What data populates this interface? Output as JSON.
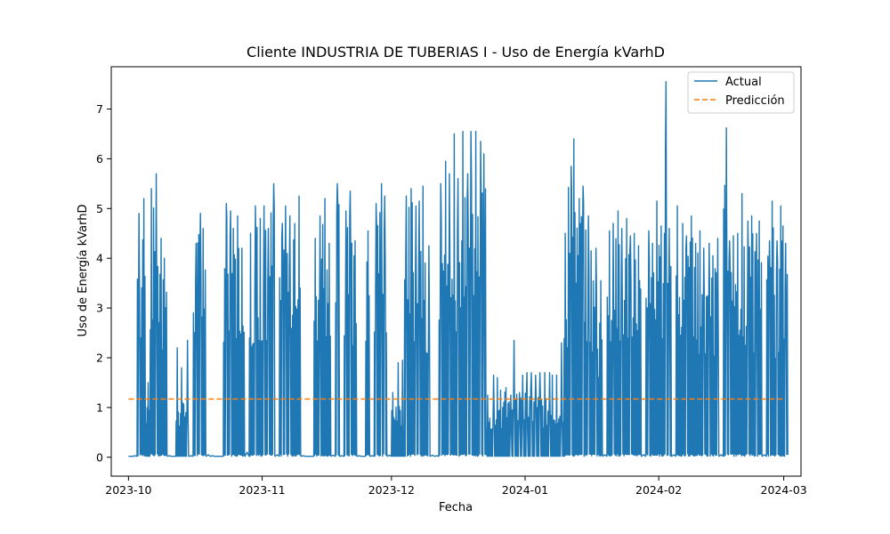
{
  "chart_data": {
    "type": "line",
    "title": "Cliente INDUSTRIA DE TUBERIAS I - Uso de Energía kVarhD",
    "xlabel": "Fecha",
    "ylabel": "Uso de Energía kVarhD",
    "x_range": [
      "2023-09-27",
      "2024-03-05"
    ],
    "ylim": [
      -0.38,
      7.85
    ],
    "x_ticks": [
      {
        "date": "2023-10-01",
        "label": "2023-10"
      },
      {
        "date": "2023-11-01",
        "label": "2023-11"
      },
      {
        "date": "2023-12-01",
        "label": "2023-12"
      },
      {
        "date": "2024-01-01",
        "label": "2024-01"
      },
      {
        "date": "2024-02-01",
        "label": "2024-02"
      },
      {
        "date": "2024-03-01",
        "label": "2024-03"
      }
    ],
    "y_ticks": [
      0,
      1,
      2,
      3,
      4,
      5,
      6,
      7
    ],
    "grid": false,
    "legend_position": "upper right",
    "series": [
      {
        "name": "Actual",
        "style": "solid",
        "color": "#1f77b4",
        "peaks": [
          [
            "2023-10-01",
            0.02
          ],
          [
            "2023-10-02",
            0.03
          ],
          [
            "2023-10-03",
            4.9
          ],
          [
            "2023-10-04",
            5.2
          ],
          [
            "2023-10-05",
            1.5
          ],
          [
            "2023-10-06",
            5.4
          ],
          [
            "2023-10-07",
            5.7
          ],
          [
            "2023-10-08",
            4.4
          ],
          [
            "2023-10-09",
            4.0
          ],
          [
            "2023-10-10",
            0.03
          ],
          [
            "2023-10-11",
            0.02
          ],
          [
            "2023-10-12",
            2.2
          ],
          [
            "2023-10-13",
            1.8
          ],
          [
            "2023-10-14",
            2.35
          ],
          [
            "2023-10-15",
            0.03
          ],
          [
            "2023-10-16",
            4.3
          ],
          [
            "2023-10-17",
            4.9
          ],
          [
            "2023-10-18",
            4.6
          ],
          [
            "2023-10-19",
            0.05
          ],
          [
            "2023-10-20",
            0.03
          ],
          [
            "2023-10-21",
            0.02
          ],
          [
            "2023-10-22",
            0.02
          ],
          [
            "2023-10-23",
            5.1
          ],
          [
            "2023-10-24",
            4.95
          ],
          [
            "2023-10-25",
            4.6
          ],
          [
            "2023-10-26",
            4.85
          ],
          [
            "2023-10-27",
            4.2
          ],
          [
            "2023-10-28",
            0.1
          ],
          [
            "2023-10-29",
            4.5
          ],
          [
            "2023-10-30",
            5.05
          ],
          [
            "2023-10-31",
            4.8
          ],
          [
            "2023-11-01",
            5.05
          ],
          [
            "2023-11-02",
            4.6
          ],
          [
            "2023-11-03",
            5.5
          ],
          [
            "2023-11-04",
            0.05
          ],
          [
            "2023-11-05",
            4.7
          ],
          [
            "2023-11-06",
            5.05
          ],
          [
            "2023-11-07",
            4.85
          ],
          [
            "2023-11-08",
            4.7
          ],
          [
            "2023-11-09",
            5.25
          ],
          [
            "2023-11-10",
            0.03
          ],
          [
            "2023-11-11",
            0.02
          ],
          [
            "2023-11-12",
            0.02
          ],
          [
            "2023-11-13",
            4.4
          ],
          [
            "2023-11-14",
            4.85
          ],
          [
            "2023-11-15",
            5.2
          ],
          [
            "2023-11-16",
            4.3
          ],
          [
            "2023-11-17",
            0.04
          ],
          [
            "2023-11-18",
            5.5
          ],
          [
            "2023-11-19",
            0.03
          ],
          [
            "2023-11-20",
            4.95
          ],
          [
            "2023-11-21",
            5.35
          ],
          [
            "2023-11-22",
            4.35
          ],
          [
            "2023-11-23",
            0.03
          ],
          [
            "2023-11-24",
            0.02
          ],
          [
            "2023-11-25",
            4.55
          ],
          [
            "2023-11-26",
            0.03
          ],
          [
            "2023-11-27",
            5.1
          ],
          [
            "2023-11-28",
            5.5
          ],
          [
            "2023-11-29",
            5.25
          ],
          [
            "2023-11-30",
            0.04
          ],
          [
            "2023-12-01",
            1.3
          ],
          [
            "2023-12-02",
            1.9
          ],
          [
            "2023-12-03",
            1.95
          ],
          [
            "2023-12-04",
            5.25
          ],
          [
            "2023-12-05",
            5.4
          ],
          [
            "2023-12-06",
            5.05
          ],
          [
            "2023-12-07",
            5.15
          ],
          [
            "2023-12-08",
            5.45
          ],
          [
            "2023-12-09",
            4.25
          ],
          [
            "2023-12-10",
            0.04
          ],
          [
            "2023-12-11",
            0.03
          ],
          [
            "2023-12-12",
            5.5
          ],
          [
            "2023-12-13",
            5.95
          ],
          [
            "2023-12-14",
            5.7
          ],
          [
            "2023-12-15",
            6.5
          ],
          [
            "2023-12-16",
            5.6
          ],
          [
            "2023-12-17",
            6.55
          ],
          [
            "2023-12-18",
            5.7
          ],
          [
            "2023-12-19",
            6.55
          ],
          [
            "2023-12-20",
            6.55
          ],
          [
            "2023-12-21",
            6.35
          ],
          [
            "2023-12-22",
            6.1
          ],
          [
            "2023-12-23",
            1.25
          ],
          [
            "2023-12-24",
            1.65
          ],
          [
            "2023-12-25",
            1.6
          ],
          [
            "2023-12-26",
            1.35
          ],
          [
            "2023-12-27",
            1.4
          ],
          [
            "2023-12-28",
            1.25
          ],
          [
            "2023-12-29",
            2.35
          ],
          [
            "2023-12-30",
            1.3
          ],
          [
            "2023-12-31",
            1.65
          ],
          [
            "2024-01-01",
            1.7
          ],
          [
            "2024-01-02",
            1.7
          ],
          [
            "2024-01-03",
            1.65
          ],
          [
            "2024-01-04",
            1.7
          ],
          [
            "2024-01-05",
            1.7
          ],
          [
            "2024-01-06",
            1.7
          ],
          [
            "2024-01-07",
            1.65
          ],
          [
            "2024-01-08",
            1.65
          ],
          [
            "2024-01-09",
            2.3
          ],
          [
            "2024-01-10",
            4.5
          ],
          [
            "2024-01-11",
            5.85
          ],
          [
            "2024-01-12",
            6.4
          ],
          [
            "2024-01-13",
            5.2
          ],
          [
            "2024-01-14",
            5.45
          ],
          [
            "2024-01-15",
            4.85
          ],
          [
            "2024-01-16",
            4.15
          ],
          [
            "2024-01-17",
            4.2
          ],
          [
            "2024-01-18",
            3.55
          ],
          [
            "2024-01-19",
            0.05
          ],
          [
            "2024-01-20",
            4.55
          ],
          [
            "2024-01-21",
            4.7
          ],
          [
            "2024-01-22",
            4.95
          ],
          [
            "2024-01-23",
            4.6
          ],
          [
            "2024-01-24",
            4.8
          ],
          [
            "2024-01-25",
            4.45
          ],
          [
            "2024-01-26",
            4.5
          ],
          [
            "2024-01-27",
            4.25
          ],
          [
            "2024-01-28",
            0.05
          ],
          [
            "2024-01-29",
            4.55
          ],
          [
            "2024-01-30",
            4.3
          ],
          [
            "2024-01-31",
            5.15
          ],
          [
            "2024-02-01",
            4.65
          ],
          [
            "2024-02-02",
            7.55
          ],
          [
            "2024-02-03",
            4.6
          ],
          [
            "2024-02-04",
            0.05
          ],
          [
            "2024-02-05",
            5.05
          ],
          [
            "2024-02-06",
            4.7
          ],
          [
            "2024-02-07",
            4.45
          ],
          [
            "2024-02-08",
            4.85
          ],
          [
            "2024-02-09",
            4.3
          ],
          [
            "2024-02-10",
            4.55
          ],
          [
            "2024-02-11",
            4.2
          ],
          [
            "2024-02-12",
            4.3
          ],
          [
            "2024-02-13",
            4.05
          ],
          [
            "2024-02-14",
            4.4
          ],
          [
            "2024-02-15",
            0.05
          ],
          [
            "2024-02-16",
            6.62
          ],
          [
            "2024-02-17",
            4.35
          ],
          [
            "2024-02-18",
            4.45
          ],
          [
            "2024-02-19",
            4.5
          ],
          [
            "2024-02-20",
            5.3
          ],
          [
            "2024-02-21",
            4.75
          ],
          [
            "2024-02-22",
            4.85
          ],
          [
            "2024-02-23",
            4.5
          ],
          [
            "2024-02-24",
            4.75
          ],
          [
            "2024-02-25",
            0.05
          ],
          [
            "2024-02-26",
            4.35
          ],
          [
            "2024-02-27",
            5.15
          ],
          [
            "2024-02-28",
            4.35
          ],
          [
            "2024-02-29",
            5.05
          ],
          [
            "2024-03-01",
            4.3
          ]
        ]
      },
      {
        "name": "Predicción",
        "style": "dashed",
        "color": "#ff7f0e",
        "points": [
          [
            "2023-10-01",
            1.17
          ],
          [
            "2024-03-01",
            1.17
          ]
        ]
      }
    ]
  }
}
